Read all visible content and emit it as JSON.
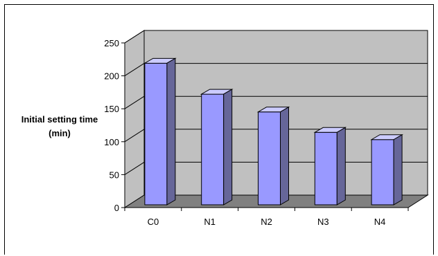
{
  "chart_data": {
    "type": "bar",
    "title": "",
    "xlabel": "",
    "ylabel": "Initial setting time (min)",
    "categories": [
      "C0",
      "N1",
      "N2",
      "N3",
      "N4"
    ],
    "values": [
      215,
      168,
      141,
      110,
      99
    ],
    "ylim": [
      0,
      250
    ],
    "yticks": [
      0,
      50,
      100,
      150,
      200,
      250
    ],
    "grid": true,
    "legend": "none",
    "style": "3d-column"
  },
  "colors": {
    "bar_front": "#9999ff",
    "bar_top": "#ccccff",
    "bar_side": "#666699",
    "wall": "#c0c0c0",
    "floor": "#808080"
  }
}
